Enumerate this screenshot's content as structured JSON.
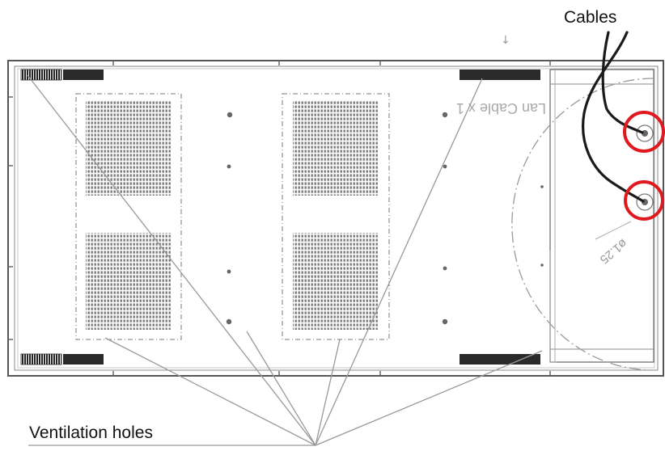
{
  "labels": {
    "cables": "Cables",
    "ventilation_holes": "Ventilation holes"
  },
  "drawing_text": {
    "lan_cable": "Lan Cable x 1",
    "diameter": "ø1.25",
    "top_mark": "↓"
  },
  "colors": {
    "callout_circle": "#e0191e",
    "line": "#555555",
    "cable": "#1a1a1a"
  }
}
